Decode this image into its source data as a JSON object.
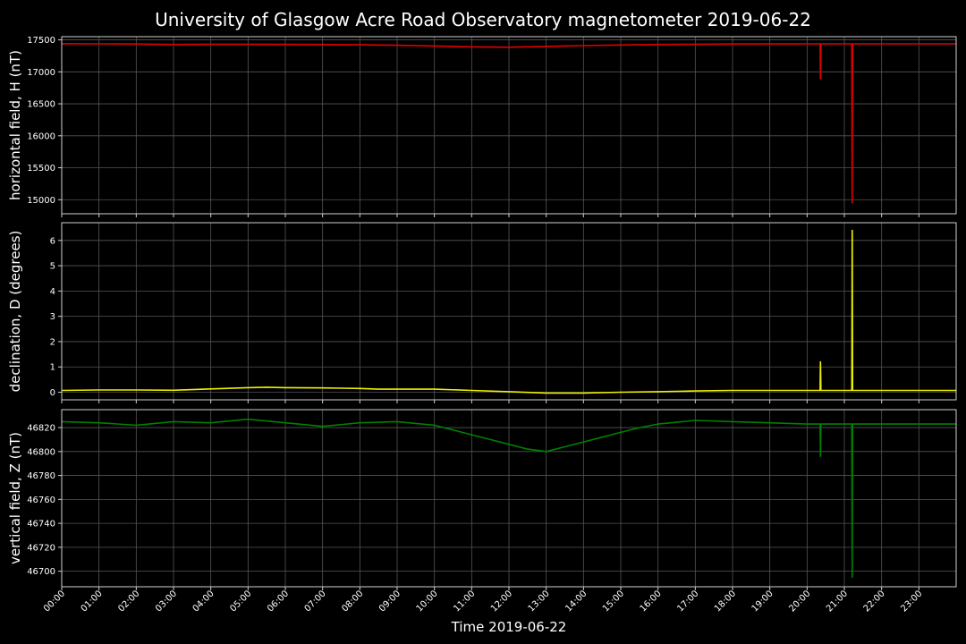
{
  "chart_data": {
    "title": "University of Glasgow Acre Road Observatory magnetometer 2019-06-22",
    "xlabel": "Time 2019-06-22",
    "x_tick_labels": [
      "00:00",
      "01:00",
      "02:00",
      "03:00",
      "04:00",
      "05:00",
      "06:00",
      "07:00",
      "08:00",
      "09:00",
      "10:00",
      "11:00",
      "12:00",
      "13:00",
      "14:00",
      "15:00",
      "16:00",
      "17:00",
      "18:00",
      "19:00",
      "20:00",
      "21:00",
      "22:00",
      "23:00"
    ],
    "xlim_hours": [
      0,
      24
    ],
    "grid": true,
    "background": "#000000",
    "panels": [
      {
        "type": "line",
        "ylabel": "horizontal field, H (nT)",
        "color": "#e00000",
        "ylim": [
          14780,
          17550
        ],
        "yticks": [
          15000,
          15500,
          16000,
          16500,
          17000,
          17500
        ],
        "x": [
          0,
          1,
          2,
          3,
          4,
          5,
          6,
          7,
          8,
          9,
          10,
          11,
          12,
          13,
          14,
          15,
          16,
          17,
          18,
          19,
          20,
          20.35,
          20.36,
          20.37,
          21.1,
          21.2,
          21.21,
          21.22,
          22,
          23,
          24
        ],
        "y": [
          17440,
          17438,
          17435,
          17428,
          17432,
          17433,
          17430,
          17428,
          17422,
          17415,
          17405,
          17390,
          17385,
          17398,
          17410,
          17420,
          17428,
          17432,
          17435,
          17437,
          17438,
          17438,
          16890,
          17438,
          17438,
          17438,
          14950,
          17438,
          17438,
          17438,
          17438
        ]
      },
      {
        "type": "line",
        "ylabel": "declination, D (degrees)",
        "color": "#f0f000",
        "ylim": [
          -0.3,
          6.7
        ],
        "yticks": [
          0,
          1,
          2,
          3,
          4,
          5,
          6
        ],
        "x": [
          0,
          1,
          2,
          3,
          4,
          5,
          5.5,
          6,
          7,
          8,
          8.5,
          9,
          10,
          11,
          12,
          13,
          14,
          15,
          16,
          17,
          18,
          19,
          20,
          20.35,
          20.36,
          20.37,
          21.1,
          21.2,
          21.21,
          21.22,
          22,
          23,
          24
        ],
        "y": [
          0.07,
          0.09,
          0.09,
          0.08,
          0.13,
          0.18,
          0.2,
          0.18,
          0.17,
          0.15,
          0.12,
          0.12,
          0.12,
          0.07,
          0.02,
          -0.03,
          -0.03,
          0.0,
          0.02,
          0.05,
          0.07,
          0.07,
          0.07,
          0.07,
          1.2,
          0.07,
          0.07,
          0.07,
          6.4,
          0.07,
          0.07,
          0.07,
          0.07
        ]
      },
      {
        "type": "line",
        "ylabel": "vertical field, Z (nT)",
        "color": "#008000",
        "ylim": [
          46687,
          46835
        ],
        "yticks": [
          46700,
          46720,
          46740,
          46760,
          46780,
          46800,
          46820
        ],
        "x": [
          0,
          1,
          2,
          3,
          4,
          5,
          6,
          7,
          8,
          9,
          10,
          10.5,
          11,
          11.5,
          12,
          12.5,
          13,
          13.5,
          14,
          14.5,
          15,
          15.5,
          16,
          17,
          18,
          19,
          20,
          20.35,
          20.36,
          20.37,
          21.1,
          21.2,
          21.21,
          21.22,
          22,
          23,
          24
        ],
        "y": [
          46825,
          46824,
          46822,
          46825,
          46824,
          46827,
          46824,
          46821,
          46824,
          46825,
          46822,
          46818,
          46814,
          46810,
          46806,
          46802,
          46800,
          46804,
          46808,
          46812,
          46816,
          46820,
          46823,
          46826,
          46825,
          46824,
          46823,
          46823,
          46796,
          46823,
          46823,
          46823,
          46695,
          46823,
          46823,
          46823,
          46823
        ]
      }
    ]
  }
}
